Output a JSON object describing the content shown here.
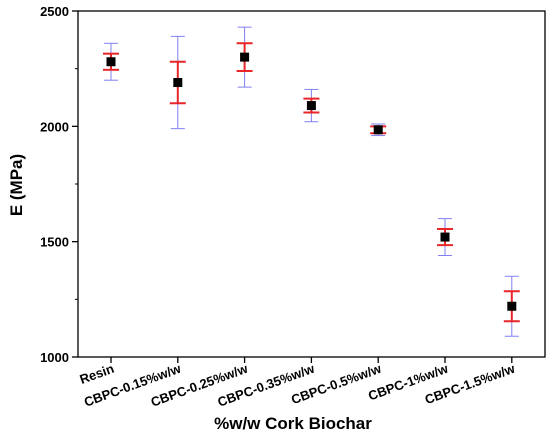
{
  "chart_data": {
    "type": "scatter",
    "title": "",
    "xlabel": "%w/w Cork Biochar",
    "ylabel": "E (MPa)",
    "ylim": [
      1000,
      2500
    ],
    "yticks": [
      1000,
      1500,
      2000,
      2500
    ],
    "categories": [
      "Resin",
      "CBPC-0.15%w/w",
      "CBPC-0.25%w/w",
      "CBPC-0.35%w/w",
      "CBPC-0.5%w/w",
      "CBPC-1%w/w",
      "CBPC-1.5%w/w"
    ],
    "values": [
      2280,
      2190,
      2300,
      2090,
      1985,
      1520,
      1220
    ],
    "error_inner": [
      35,
      90,
      60,
      30,
      15,
      35,
      65
    ],
    "error_outer": [
      80,
      200,
      130,
      70,
      25,
      80,
      130
    ],
    "colors": {
      "marker": "#000000",
      "error_inner": "#e8262a",
      "error_outer": "#8080f0"
    },
    "grid": false,
    "legend": "none"
  }
}
